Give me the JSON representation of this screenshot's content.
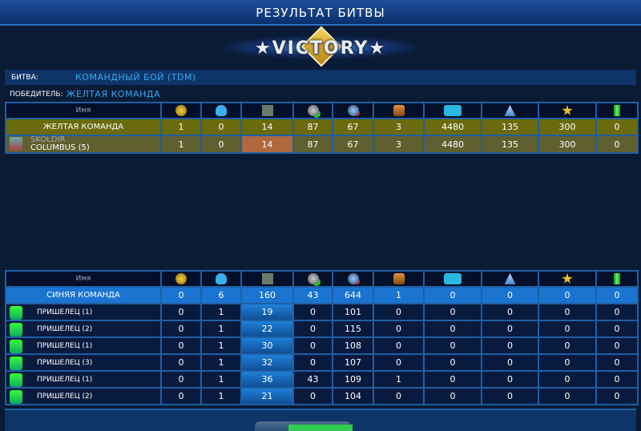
{
  "title": "РЕЗУЛЬТАТ БИТВЫ",
  "logo_text": "★VICTORY★",
  "battle": {
    "label": "БИТВА:",
    "value": "КОМАНДНЫЙ БОЙ (TDM)"
  },
  "winner": {
    "label": "ПОБЕДИТЕЛЬ:",
    "value": "ЖЕЛТАЯ КОМАНДА"
  },
  "columns": {
    "name": "Имя",
    "icons": [
      "rank-medal-icon",
      "death-skull-icon",
      "cargo-icon",
      "repair-plus-icon",
      "damage-minus-icon",
      "chest-icon",
      "credits-icon",
      "crystals-icon",
      "star-icon",
      "canister-icon"
    ]
  },
  "yellow_team": {
    "name": "ЖЕЛТАЯ КОМАНДА",
    "values": [
      "1",
      "0",
      "14",
      "87",
      "67",
      "3",
      "4480",
      "135",
      "300",
      "0"
    ],
    "players": [
      {
        "name_line1": "SKOLDIR",
        "name_line2": "COLUMBUS (5)",
        "values": [
          "1",
          "0",
          "14",
          "87",
          "67",
          "3",
          "4480",
          "135",
          "300",
          "0"
        ]
      }
    ]
  },
  "blue_team": {
    "name": "СИНЯЯ КОМАНДА",
    "values": [
      "0",
      "6",
      "160",
      "43",
      "644",
      "1",
      "0",
      "0",
      "0",
      "0"
    ],
    "players": [
      {
        "name": "ПРИШЕЛЕЦ (1)",
        "values": [
          "0",
          "1",
          "19",
          "0",
          "101",
          "0",
          "0",
          "0",
          "0",
          "0"
        ]
      },
      {
        "name": "ПРИШЕЛЕЦ (2)",
        "values": [
          "0",
          "1",
          "22",
          "0",
          "115",
          "0",
          "0",
          "0",
          "0",
          "0"
        ]
      },
      {
        "name": "ПРИШЕЛЕЦ (1)",
        "values": [
          "0",
          "1",
          "30",
          "0",
          "108",
          "0",
          "0",
          "0",
          "0",
          "0"
        ]
      },
      {
        "name": "ПРИШЕЛЕЦ (3)",
        "values": [
          "0",
          "1",
          "32",
          "0",
          "107",
          "0",
          "0",
          "0",
          "0",
          "0"
        ]
      },
      {
        "name": "ПРИШЕЛЕЦ (1)",
        "values": [
          "0",
          "1",
          "36",
          "43",
          "109",
          "1",
          "0",
          "0",
          "0",
          "0"
        ]
      },
      {
        "name": "ПРИШЕЛЕЦ (2)",
        "values": [
          "0",
          "1",
          "21",
          "0",
          "104",
          "0",
          "0",
          "0",
          "0",
          "0"
        ]
      }
    ]
  }
}
